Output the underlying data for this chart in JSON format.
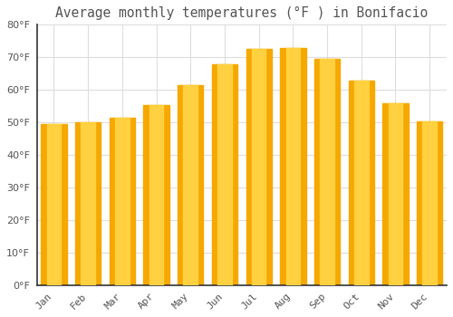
{
  "title": "Average monthly temperatures (°F ) in Bonifacio",
  "months": [
    "Jan",
    "Feb",
    "Mar",
    "Apr",
    "May",
    "Jun",
    "Jul",
    "Aug",
    "Sep",
    "Oct",
    "Nov",
    "Dec"
  ],
  "values": [
    49.5,
    50.0,
    51.5,
    55.5,
    61.5,
    68.0,
    72.5,
    73.0,
    69.5,
    63.0,
    56.0,
    50.5
  ],
  "bar_color_outer": "#F5A800",
  "bar_color_inner": "#FFD040",
  "background_color": "#FFFFFF",
  "grid_color": "#DDDDDD",
  "text_color": "#555555",
  "axis_color": "#333333",
  "ylim": [
    0,
    80
  ],
  "yticks": [
    0,
    10,
    20,
    30,
    40,
    50,
    60,
    70,
    80
  ],
  "title_fontsize": 10.5,
  "tick_fontsize": 8
}
